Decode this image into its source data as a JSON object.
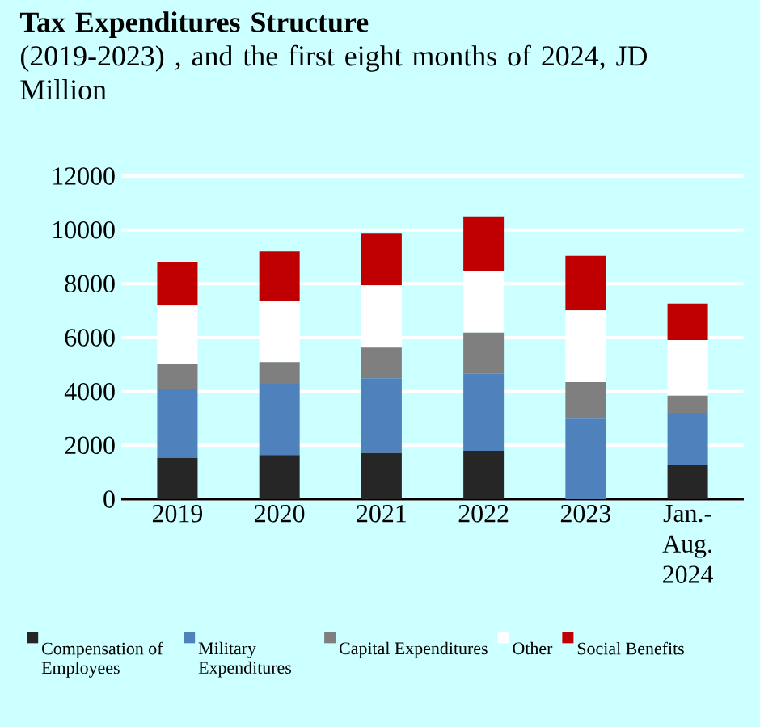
{
  "chart_data": {
    "type": "bar",
    "stacked": true,
    "title": "Tax Expenditures Structure",
    "subtitle": "(2019-2023) , and the first eight months of 2024, JD Million",
    "categories": [
      "2019",
      "2020",
      "2021",
      "2022",
      "2023",
      "Jan.-Aug. 2024"
    ],
    "series": [
      {
        "name": "Compensation of Employees",
        "color": "#262626",
        "values": [
          1540,
          1640,
          1720,
          1800,
          0,
          1260
        ]
      },
      {
        "name": "Military Expenditures",
        "color": "#4f81bd",
        "values": [
          2570,
          2650,
          2770,
          2870,
          2990,
          1950
        ]
      },
      {
        "name": "Capital Expenditures",
        "color": "#7f7f7f",
        "values": [
          920,
          800,
          1140,
          1520,
          1360,
          640
        ]
      },
      {
        "name": "Other",
        "color": "#ffffff",
        "values": [
          2160,
          2260,
          2310,
          2270,
          2660,
          2060
        ]
      },
      {
        "name": "Social Benefits",
        "color": "#c00000",
        "values": [
          1630,
          1850,
          1920,
          2020,
          2030,
          1360
        ]
      }
    ],
    "ylim": [
      0,
      12000
    ],
    "yticks": [
      0,
      2000,
      4000,
      6000,
      8000,
      10000,
      12000
    ],
    "grid": "y",
    "legend": "bottom"
  }
}
